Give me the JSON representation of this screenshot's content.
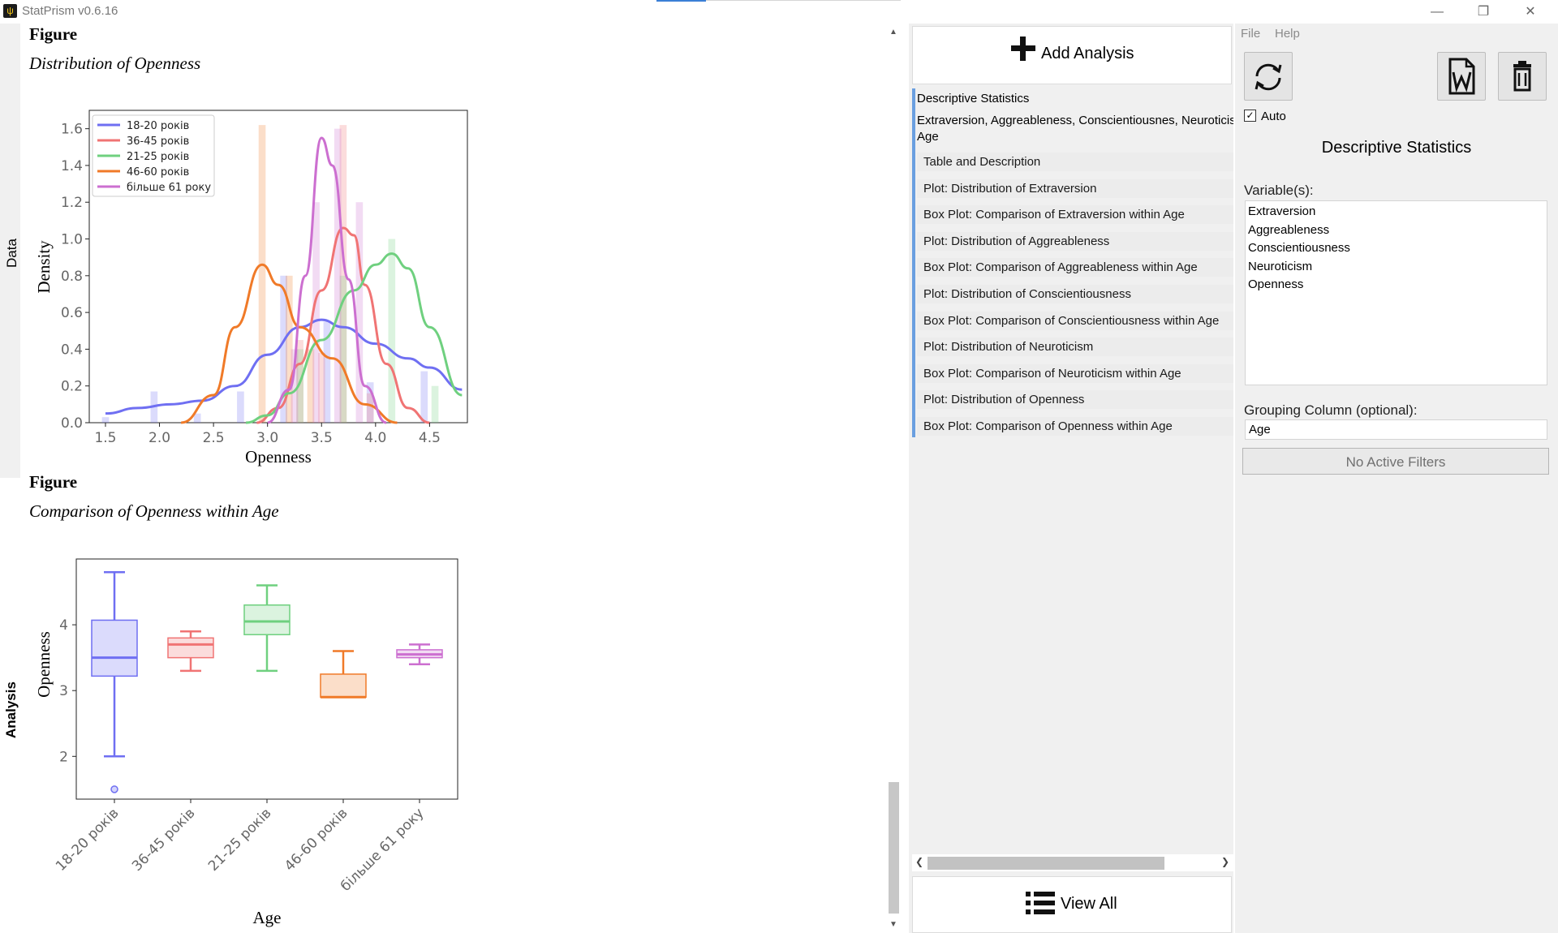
{
  "window": {
    "title": "StatPrism v0.6.16",
    "minimize_glyph": "—",
    "restore_glyph": "❐",
    "close_glyph": "✕"
  },
  "side_tabs": {
    "data": "Data",
    "analysis": "Analysis"
  },
  "report": {
    "figure1": {
      "heading": "Figure",
      "subtitle": "Distribution of Openness",
      "chart_data": {
        "type": "histogram-kde",
        "xlabel": "Openness",
        "ylabel": "Density",
        "xlim": [
          1.35,
          4.85
        ],
        "ylim": [
          0,
          1.7
        ],
        "x_ticks": [
          "1.5",
          "2.0",
          "2.5",
          "3.0",
          "3.5",
          "4.0",
          "4.5"
        ],
        "y_ticks": [
          "0.0",
          "0.2",
          "0.4",
          "0.6",
          "0.8",
          "1.0",
          "1.2",
          "1.4",
          "1.6"
        ],
        "legend_position": "top-left",
        "series": [
          {
            "name": "18-20 років",
            "color": "#6f6ff2",
            "bars": [
              [
                1.5,
                0.03
              ],
              [
                1.95,
                0.17
              ],
              [
                2.35,
                0.05
              ],
              [
                2.75,
                0.17
              ],
              [
                3.15,
                0.8
              ],
              [
                3.55,
                0.55
              ],
              [
                3.95,
                0.22
              ],
              [
                4.45,
                0.28
              ]
            ],
            "kde": [
              [
                1.5,
                0.05
              ],
              [
                1.8,
                0.08
              ],
              [
                2.1,
                0.1
              ],
              [
                2.4,
                0.12
              ],
              [
                2.7,
                0.2
              ],
              [
                3.0,
                0.37
              ],
              [
                3.3,
                0.52
              ],
              [
                3.5,
                0.56
              ],
              [
                3.7,
                0.52
              ],
              [
                4.0,
                0.43
              ],
              [
                4.3,
                0.35
              ],
              [
                4.5,
                0.3
              ],
              [
                4.8,
                0.18
              ]
            ]
          },
          {
            "name": "36-45 років",
            "color": "#f07474",
            "bars": [
              [
                3.3,
                0.45
              ],
              [
                3.5,
                0.38
              ],
              [
                3.7,
                1.62
              ],
              [
                3.95,
                0.16
              ]
            ],
            "kde": [
              [
                2.9,
                0.0
              ],
              [
                3.1,
                0.08
              ],
              [
                3.3,
                0.32
              ],
              [
                3.5,
                0.72
              ],
              [
                3.7,
                1.06
              ],
              [
                3.8,
                1.02
              ],
              [
                3.9,
                0.75
              ],
              [
                4.1,
                0.32
              ],
              [
                4.3,
                0.08
              ],
              [
                4.5,
                0.0
              ]
            ]
          },
          {
            "name": "21-25 років",
            "color": "#6fd07f",
            "bars": [
              [
                3.3,
                0.4
              ],
              [
                3.7,
                0.8
              ],
              [
                4.15,
                1.0
              ],
              [
                4.55,
                0.2
              ]
            ],
            "kde": [
              [
                2.8,
                0.0
              ],
              [
                3.0,
                0.04
              ],
              [
                3.2,
                0.16
              ],
              [
                3.5,
                0.45
              ],
              [
                3.8,
                0.72
              ],
              [
                4.0,
                0.86
              ],
              [
                4.15,
                0.92
              ],
              [
                4.3,
                0.84
              ],
              [
                4.5,
                0.52
              ],
              [
                4.8,
                0.15
              ]
            ]
          },
          {
            "name": "46-60 років",
            "color": "#f07a28",
            "bars": [
              [
                2.95,
                1.62
              ],
              [
                3.2,
                0.8
              ],
              [
                3.4,
                0.4
              ]
            ],
            "kde": [
              [
                2.2,
                0.0
              ],
              [
                2.5,
                0.15
              ],
              [
                2.7,
                0.52
              ],
              [
                2.95,
                0.86
              ],
              [
                3.1,
                0.75
              ],
              [
                3.3,
                0.52
              ],
              [
                3.6,
                0.35
              ],
              [
                3.9,
                0.1
              ],
              [
                4.2,
                0.0
              ]
            ]
          },
          {
            "name": "більше 61 року",
            "color": "#cc6fd0",
            "bars": [
              [
                3.45,
                1.2
              ],
              [
                3.65,
                1.6
              ],
              [
                3.85,
                1.2
              ],
              [
                3.25,
                0.4
              ]
            ],
            "kde": [
              [
                3.0,
                0.0
              ],
              [
                3.2,
                0.18
              ],
              [
                3.35,
                0.8
              ],
              [
                3.5,
                1.55
              ],
              [
                3.6,
                1.4
              ],
              [
                3.75,
                0.78
              ],
              [
                3.9,
                0.2
              ],
              [
                4.1,
                0.0
              ]
            ]
          }
        ]
      }
    },
    "figure2": {
      "heading": "Figure",
      "subtitle": "Comparison of Openness within Age",
      "chart_data": {
        "type": "box",
        "xlabel": "Age",
        "ylabel": "Openness",
        "ylim": [
          1.35,
          5.0
        ],
        "y_ticks": [
          "2",
          "3",
          "4"
        ],
        "categories": [
          "18-20 років",
          "36-45 років",
          "21-25 років",
          "46-60 років",
          "більше 61 року"
        ],
        "colors": [
          "#6f6ff2",
          "#f07474",
          "#6fd07f",
          "#f07a28",
          "#cc6fd0"
        ],
        "boxes": [
          {
            "min": 2.0,
            "q1": 3.22,
            "median": 3.5,
            "q3": 4.07,
            "max": 4.8,
            "outliers": [
              1.5
            ]
          },
          {
            "min": 3.3,
            "q1": 3.5,
            "median": 3.7,
            "q3": 3.8,
            "max": 3.9,
            "outliers": []
          },
          {
            "min": 3.3,
            "q1": 3.85,
            "median": 4.05,
            "q3": 4.3,
            "max": 4.6,
            "outliers": []
          },
          {
            "min": 2.9,
            "q1": 2.9,
            "median": 2.9,
            "q3": 3.25,
            "max": 3.6,
            "outliers": []
          },
          {
            "min": 3.4,
            "q1": 3.5,
            "median": 3.55,
            "q3": 3.62,
            "max": 3.7,
            "outliers": []
          }
        ]
      }
    }
  },
  "middle": {
    "add_label": "Add Analysis",
    "group_title": "Descriptive Statistics",
    "group_vars": "Extraversion, Aggreableness, Conscientiousnes, Neuroticism",
    "group_grouping": "Age",
    "items": [
      "Table and Description",
      "Plot: Distribution of Extraversion",
      "Box Plot: Comparison of Extraversion within Age",
      "Plot: Distribution of Aggreableness",
      "Box Plot: Comparison of Aggreableness within Age",
      "Plot: Distribution of Conscientiousness",
      "Box Plot: Comparison of Conscientiousness within Age",
      "Plot: Distribution of Neuroticism",
      "Box Plot: Comparison of Neuroticism within Age",
      "Plot: Distribution of Openness",
      "Box Plot: Comparison of Openness within Age"
    ],
    "view_all_label": "View All"
  },
  "right": {
    "menu": [
      "File",
      "Help"
    ],
    "auto_label": "Auto",
    "auto_checked": true,
    "panel_title": "Descriptive Statistics",
    "variables_label": "Variable(s):",
    "variables": [
      "Extraversion",
      "Aggreableness",
      "Conscientiousness",
      "Neuroticism",
      "Openness"
    ],
    "grouping_label": "Grouping Column (optional):",
    "grouping_value": "Age",
    "filters_label": "No Active Filters"
  }
}
